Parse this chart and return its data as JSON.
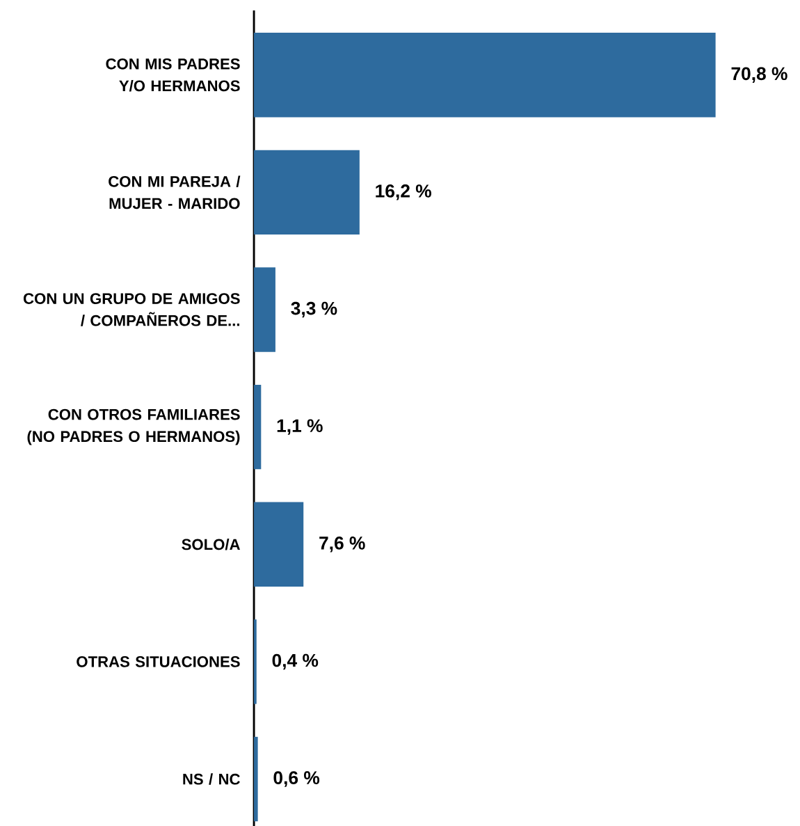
{
  "chart_data": {
    "type": "bar",
    "orientation": "horizontal",
    "categories": [
      "CON MIS PADRES Y/O HERMANOS",
      "CON MI PAREJA / MUJER - MARIDO",
      "CON UN GRUPO DE AMIGOS / COMPAÑEROS DE...",
      "CON OTROS FAMILIARES (NO PADRES O HERMANOS)",
      "SOLO/A",
      "OTRAS SITUACIONES",
      "NS / NC"
    ],
    "values": [
      70.8,
      16.2,
      3.3,
      1.1,
      7.6,
      0.4,
      0.6
    ],
    "value_labels": [
      "70,8 %",
      "16,2 %",
      "3,3 %",
      "1,1 %",
      "7,6 %",
      "0,4 %",
      "0,6 %"
    ],
    "color": "#2e6b9e"
  }
}
